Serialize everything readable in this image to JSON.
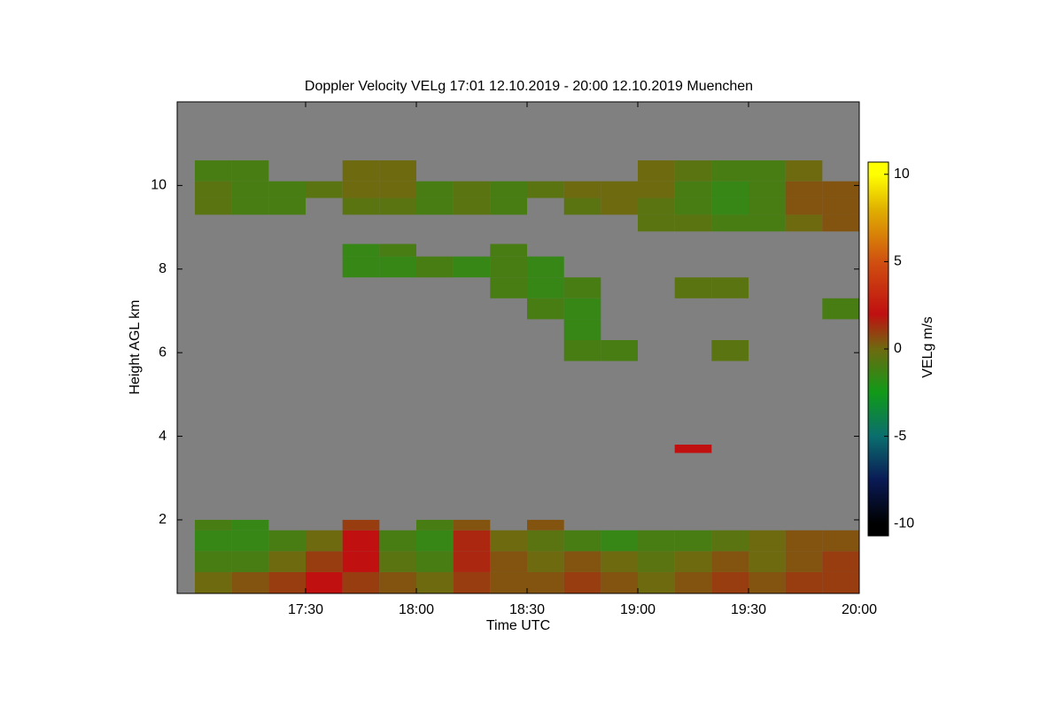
{
  "chart_data": {
    "type": "heatmap",
    "title": "Doppler Velocity VELg   17:01 12.10.2019 - 20:00 12.10.2019 Muenchen",
    "xlabel": "Time UTC",
    "ylabel": "Height AGL km",
    "colorbar_label": "VELg m/s",
    "xlim": [
      16.92,
      20.0
    ],
    "ylim": [
      0.24,
      12.0
    ],
    "xticks": [
      {
        "value": 17.5,
        "label": "17:30"
      },
      {
        "value": 18,
        "label": "18:00"
      },
      {
        "value": 18.5,
        "label": "18:30"
      },
      {
        "value": 19,
        "label": "19:00"
      },
      {
        "value": 19.5,
        "label": "19:30"
      },
      {
        "value": 20,
        "label": "20:00"
      }
    ],
    "yticks": [
      2,
      4,
      6,
      8,
      10
    ],
    "clim": [
      -10.7,
      10.7
    ],
    "cticks": [
      -10,
      -5,
      0,
      5,
      10
    ],
    "background": "#808080",
    "colorscale": [
      [
        -10,
        "#000000"
      ],
      [
        -7.5,
        "#0a1a55"
      ],
      [
        -5,
        "#0a6e6e"
      ],
      [
        -2.5,
        "#109a18"
      ],
      [
        0,
        "#6e6a10"
      ],
      [
        2,
        "#c01010"
      ],
      [
        5,
        "#d05010"
      ],
      [
        8,
        "#e0b000"
      ],
      [
        10,
        "#ffff00"
      ]
    ],
    "xbins": [
      17.0,
      17.1667,
      17.3333,
      17.5,
      17.6667,
      17.8333,
      18.0,
      18.1667,
      18.3333,
      18.5,
      18.6667,
      18.8333,
      19.0,
      19.1667,
      19.3333,
      19.5,
      19.6667,
      19.8333,
      20.0
    ],
    "ybins": [
      0.25,
      0.75,
      1.25,
      1.75,
      2.0,
      3.6,
      3.8,
      5.8,
      6.3,
      6.8,
      7.3,
      7.8,
      8.3,
      8.6,
      8.9,
      9.3,
      9.7,
      10.1,
      10.6
    ],
    "z": [
      [
        0,
        0.5,
        1,
        2,
        1,
        0.5,
        0,
        1,
        0.5,
        0.5,
        1,
        0.5,
        0,
        0.5,
        1,
        0.5,
        1,
        1
      ],
      [
        -1,
        -1,
        0,
        1,
        2,
        -0.5,
        -1,
        1.5,
        0.5,
        0,
        0.5,
        0,
        -0.5,
        0,
        0.5,
        0,
        0.5,
        1
      ],
      [
        -1.5,
        -1.5,
        -1,
        0,
        2,
        -1,
        -1.5,
        1.5,
        0,
        -0.5,
        -1,
        -1.5,
        -1,
        -1,
        -0.5,
        0,
        0.5,
        0.5
      ],
      [
        -1,
        -1.5,
        null,
        null,
        1,
        null,
        -1,
        0.5,
        null,
        0.5,
        null,
        null,
        null,
        null,
        null,
        null,
        null,
        null
      ],
      [
        null,
        null,
        null,
        null,
        null,
        null,
        null,
        null,
        null,
        null,
        null,
        null,
        null,
        null,
        null,
        null,
        null,
        null
      ],
      [
        null,
        null,
        null,
        null,
        null,
        null,
        null,
        null,
        null,
        null,
        null,
        null,
        null,
        2,
        null,
        null,
        null,
        null
      ],
      [
        null,
        null,
        null,
        null,
        null,
        null,
        null,
        null,
        null,
        null,
        null,
        null,
        null,
        null,
        null,
        null,
        null,
        null
      ],
      [
        null,
        null,
        null,
        null,
        null,
        null,
        null,
        null,
        null,
        null,
        -1,
        -1,
        null,
        null,
        -0.5,
        null,
        null,
        null
      ],
      [
        null,
        null,
        null,
        null,
        null,
        null,
        null,
        null,
        null,
        null,
        -1.5,
        null,
        null,
        null,
        null,
        null,
        null,
        null
      ],
      [
        null,
        null,
        null,
        null,
        null,
        null,
        null,
        null,
        null,
        -1,
        -1.5,
        null,
        null,
        null,
        null,
        null,
        null,
        -1
      ],
      [
        null,
        null,
        null,
        null,
        null,
        null,
        null,
        null,
        -1,
        -1.5,
        -1,
        null,
        null,
        -0.5,
        -0.5,
        null,
        null,
        null
      ],
      [
        null,
        null,
        null,
        null,
        -1.5,
        -1.5,
        -1,
        -1.5,
        -1,
        -1.5,
        null,
        null,
        null,
        null,
        null,
        null,
        null,
        null
      ],
      [
        null,
        null,
        null,
        null,
        -1.5,
        -1,
        null,
        null,
        -1,
        null,
        null,
        null,
        null,
        null,
        null,
        null,
        null,
        null
      ],
      [
        null,
        null,
        null,
        null,
        null,
        null,
        null,
        null,
        null,
        null,
        null,
        null,
        null,
        null,
        null,
        null,
        null,
        null
      ],
      [
        null,
        null,
        null,
        null,
        null,
        null,
        null,
        null,
        null,
        null,
        null,
        null,
        -0.5,
        -0.5,
        -1,
        -1,
        0,
        0.5
      ],
      [
        -0.5,
        -1,
        -1,
        null,
        -0.5,
        -0.5,
        -1,
        -0.5,
        -1,
        null,
        -0.5,
        0,
        -0.5,
        -1,
        -1.5,
        -1,
        0.5,
        0.5
      ],
      [
        -0.5,
        -1,
        -1,
        -0.5,
        0,
        0,
        -1,
        -0.5,
        -1,
        -0.5,
        0,
        0,
        0,
        -1,
        -1.5,
        -1,
        0.5,
        0.5
      ],
      [
        -1,
        -1,
        null,
        null,
        0,
        0,
        null,
        null,
        null,
        null,
        null,
        null,
        0,
        -0.5,
        -1,
        -1,
        0,
        null
      ]
    ]
  }
}
